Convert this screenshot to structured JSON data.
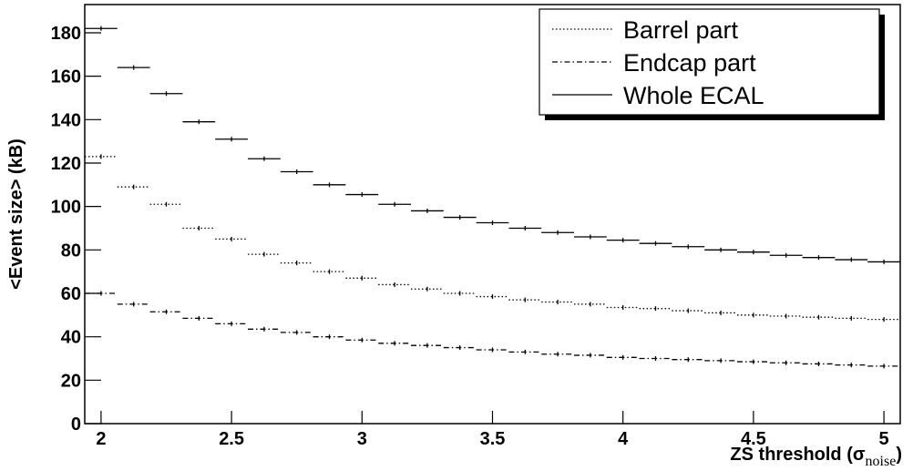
{
  "chart_data": {
    "type": "step-points",
    "y_label": "<Event size> (kB)",
    "x_label": [
      "ZS threshold (σ",
      "noise",
      ")"
    ],
    "x": [
      2.0,
      2.125,
      2.25,
      2.375,
      2.5,
      2.625,
      2.75,
      2.875,
      3.0,
      3.125,
      3.25,
      3.375,
      3.5,
      3.625,
      3.75,
      3.875,
      4.0,
      4.125,
      4.25,
      4.375,
      4.5,
      4.625,
      4.75,
      4.875,
      5.0
    ],
    "bin_width": 0.125,
    "series": [
      {
        "name": "Barrel part",
        "color": "#000000",
        "line_style": "dotted",
        "values": [
          123,
          109,
          101,
          90,
          85,
          78,
          74,
          70,
          67,
          64,
          62,
          60,
          58.5,
          57,
          56,
          55,
          53.5,
          53,
          52,
          51,
          50,
          49.5,
          49,
          48.5,
          48
        ]
      },
      {
        "name": "Endcap part",
        "color": "#000000",
        "line_style": "dash-dot",
        "values": [
          60,
          55,
          51.5,
          48.5,
          46,
          43.5,
          42,
          40,
          38.5,
          37,
          36,
          35,
          34,
          33,
          32,
          31.5,
          30.5,
          30,
          29.5,
          29,
          28.5,
          28,
          27.5,
          27,
          26.5
        ]
      },
      {
        "name": "Whole ECAL",
        "color": "#000000",
        "line_style": "solid",
        "values": [
          182,
          164,
          152,
          139,
          131,
          122,
          116,
          110,
          105.5,
          101,
          98,
          95,
          92.5,
          90,
          88,
          86,
          84.5,
          83,
          81.5,
          80,
          79,
          77.5,
          76.5,
          75.5,
          74.5
        ]
      }
    ],
    "xlim": [
      1.9375,
      5.0625
    ],
    "xticks": [
      2,
      2.5,
      3,
      3.5,
      4,
      4.5,
      5
    ],
    "ylim": [
      0,
      193
    ],
    "yticks": [
      0,
      20,
      40,
      60,
      80,
      100,
      120,
      140,
      160,
      180
    ],
    "legend": "top-right"
  }
}
